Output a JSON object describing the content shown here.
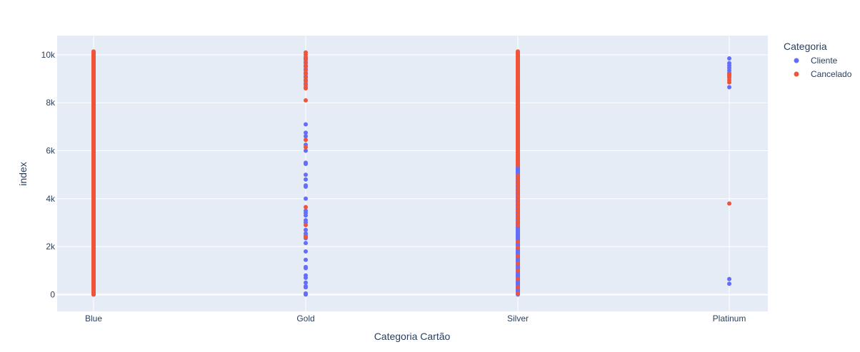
{
  "chart_data": {
    "type": "scatter",
    "title": "",
    "xlabel": "Categoria Cartão",
    "ylabel": "index",
    "categories": [
      "Blue",
      "Gold",
      "Silver",
      "Platinum"
    ],
    "ylim": [
      -700,
      10800
    ],
    "yticks": [
      0,
      2000,
      4000,
      6000,
      8000,
      10000
    ],
    "ytick_labels": [
      "0",
      "2k",
      "4k",
      "6k",
      "8k",
      "10k"
    ],
    "grid": true,
    "legend": {
      "title": "Categoria",
      "placement": "top-right"
    },
    "colors": {
      "plot_bg": "#e5ecf6",
      "grid": "#ffffff",
      "text": "#2a3f5f"
    },
    "series": [
      {
        "name": "Cliente",
        "color": "#636efa",
        "points": {
          "Blue": {
            "range": [
              0,
              10100
            ],
            "step": 20
          },
          "Gold": [
            9850,
            9700,
            9550,
            9400,
            9250,
            9100,
            8950,
            8800,
            8650,
            7100,
            6750,
            6600,
            6250,
            6000,
            5500,
            5450,
            5000,
            4800,
            4550,
            4500,
            4000,
            3500,
            3400,
            3300,
            3100,
            3000,
            2700,
            2550,
            2450,
            2350,
            2150,
            1800,
            1450,
            1150,
            1100,
            800,
            700,
            500,
            350,
            300,
            50,
            0
          ],
          "Silver": {
            "range": [
              0,
              8600
            ],
            "step": 25
          },
          "Platinum": [
            9850,
            9650,
            9550,
            9450,
            9350,
            9250,
            8650,
            650,
            450
          ]
        }
      },
      {
        "name": "Cancelado",
        "color": "#ef553b",
        "points": {
          "Blue": {
            "range": [
              0,
              10150
            ],
            "step": 15
          },
          "Gold": [
            10100,
            10000,
            9900,
            9800,
            9650,
            9500,
            9350,
            9200,
            9050,
            8900,
            8750,
            8600,
            8100,
            6450,
            6150,
            3650,
            2900,
            2400
          ],
          "Silver": {
            "range": [
              5400,
              10150
            ],
            "step": 30,
            "extra": [
              4950,
              4850,
              4700,
              4550,
              4400,
              4250,
              4100,
              3950,
              3800,
              3650,
              3500,
              3350,
              3200,
              3050,
              2900,
              2200,
              1950,
              1600,
              1300,
              1000,
              650,
              300,
              50
            ]
          },
          "Platinum": [
            9200,
            9150,
            9100,
            9050,
            8950,
            8850,
            3800
          ]
        }
      }
    ]
  }
}
